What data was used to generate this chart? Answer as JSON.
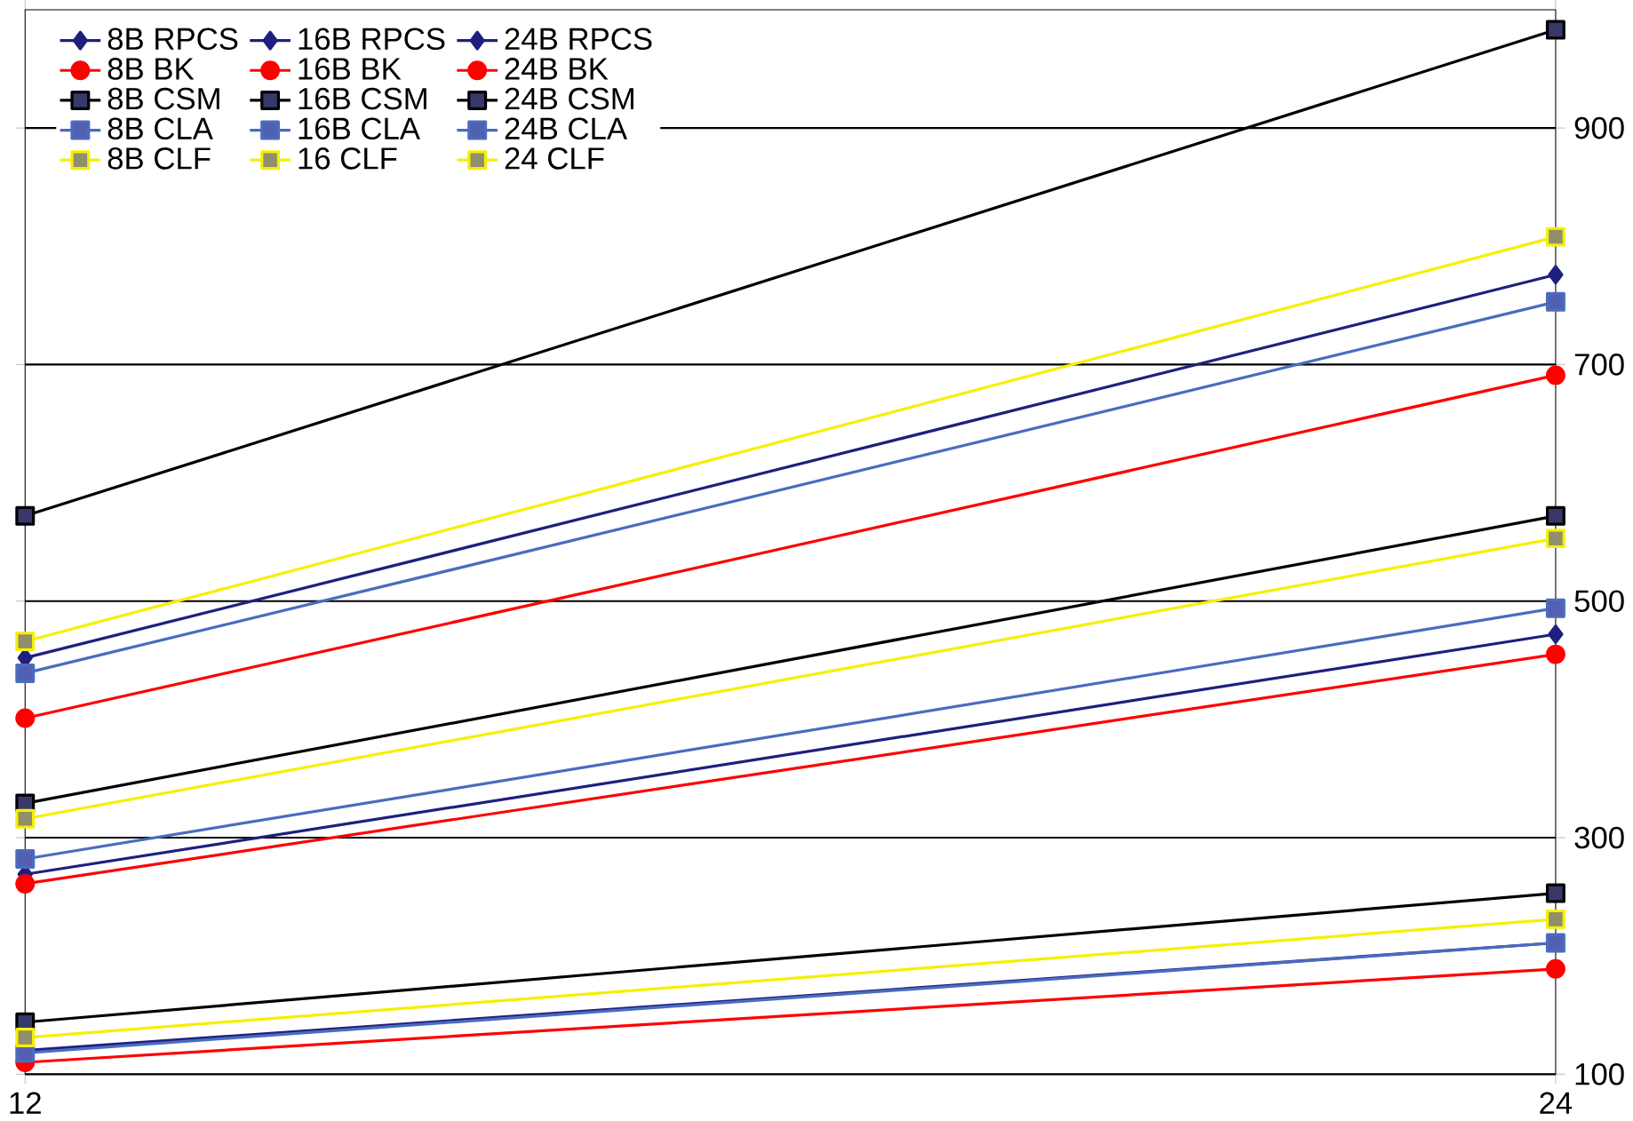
{
  "chart_data": {
    "type": "line",
    "x": [
      12,
      24
    ],
    "xlim": [
      12,
      24
    ],
    "xticks": [
      12,
      24
    ],
    "ylim": [
      100,
      1000
    ],
    "yticks": [
      100,
      300,
      500,
      700,
      900
    ],
    "grid": "y",
    "legend": "top left",
    "series": [
      {
        "name": "8B RPCS",
        "color": "#1f1f7f",
        "marker": "diamond",
        "values": [
          120,
          211
        ]
      },
      {
        "name": "16B RPCS",
        "color": "#1f1f7f",
        "marker": "diamond",
        "values": [
          269,
          472
        ]
      },
      {
        "name": "24B RPCS",
        "color": "#1f1f7f",
        "marker": "diamond",
        "values": [
          452,
          776
        ]
      },
      {
        "name": "8B BK",
        "color": "#ff0000",
        "marker": "circle",
        "values": [
          110,
          189
        ]
      },
      {
        "name": "16B BK",
        "color": "#ff0000",
        "marker": "circle",
        "values": [
          261,
          455
        ]
      },
      {
        "name": "24B BK",
        "color": "#ff0000",
        "marker": "circle",
        "values": [
          401,
          691
        ]
      },
      {
        "name": "8B CSM",
        "color": "#000000",
        "marker": "square",
        "values": [
          144,
          253
        ]
      },
      {
        "name": "16B CSM",
        "color": "#000000",
        "marker": "square",
        "values": [
          329,
          572
        ]
      },
      {
        "name": "24B CSM",
        "color": "#000000",
        "marker": "square",
        "values": [
          572,
          983
        ]
      },
      {
        "name": "8B CLA",
        "color": "#4a6cc0",
        "marker": "square",
        "values": [
          118,
          211
        ]
      },
      {
        "name": "16B CLA",
        "color": "#4a6cc0",
        "marker": "square",
        "values": [
          282,
          494
        ]
      },
      {
        "name": "24B CLA",
        "color": "#4a6cc0",
        "marker": "square",
        "values": [
          439,
          753
        ]
      },
      {
        "name": "8B CLF",
        "color": "#f5f000",
        "marker": "square",
        "values": [
          131,
          231
        ]
      },
      {
        "name": "16 CLF",
        "color": "#f5f000",
        "marker": "square",
        "values": [
          316,
          553
        ]
      },
      {
        "name": "24 CLF",
        "color": "#f5f000",
        "marker": "square",
        "values": [
          466,
          808
        ]
      }
    ]
  }
}
